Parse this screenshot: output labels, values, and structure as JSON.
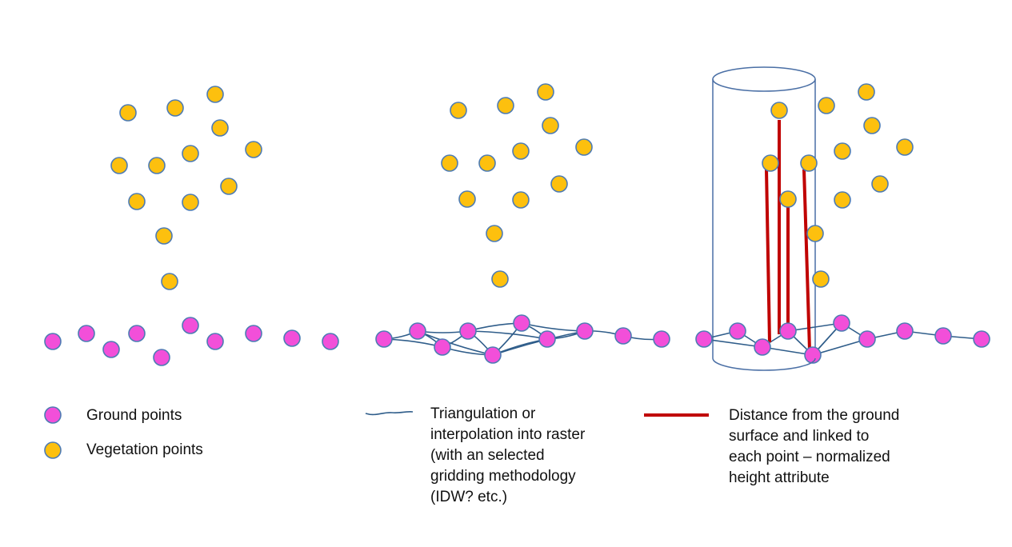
{
  "legend": {
    "ground": "Ground points",
    "vegetation": "Vegetation points",
    "triangulation": "Triangulation or interpolation into raster (with an selected gridding methodology (IDW? etc.)",
    "distance": "Distance from the ground surface and linked to each point – normalized height attribute"
  },
  "colors": {
    "ground_fill": "#f24fd9",
    "vegetation_fill": "#fdc00e",
    "point_stroke": "#4d7bb3",
    "mesh_line": "#2f5d8a",
    "height_line": "#c00000",
    "cylinder": "#4a6fa5"
  }
}
